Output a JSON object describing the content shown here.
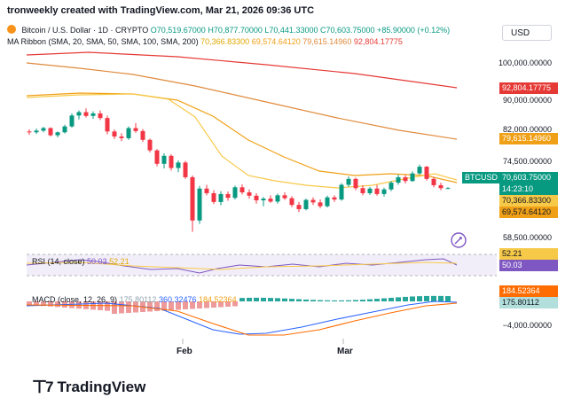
{
  "header": {
    "author": "tronweekly created with TradingView.com, Mar 21, 2026 09:36 UTC"
  },
  "currency_button": "USD",
  "legend": {
    "title": "Bitcoin / U.S. Dollar · 1D · CRYPTO",
    "o": "O70,519.67000",
    "h": "H70,877.70000",
    "l": "L70,441.33000",
    "c": "C70,603.75000",
    "change": "+85.90000 (+0.12%)",
    "ma_label": "MA Ribbon (SMA, 20, SMA, 50, SMA, 100, SMA, 200)",
    "ma20": "70,366.83300",
    "ma50": "69,574.64120",
    "ma100": "79,615.14960",
    "ma200": "92,804.17775"
  },
  "price_axis": [
    "100,000.00000",
    "90,000.00000",
    "82,000.00000",
    "74,500.00000",
    "58,500.00000"
  ],
  "badges": {
    "ma200": "92,804.17775",
    "ma100": "79,615.14960",
    "symbol": "BTCUSD",
    "price": "70,603.75000",
    "countdown": "14:23:10",
    "ma20": "70,366.83300",
    "ma50": "69,574.64120"
  },
  "rsi": {
    "label": "RSI (14, close)",
    "value": "50.03",
    "ma_value": "52.21",
    "badge_ma": "52.21",
    "badge_val": "50.03"
  },
  "macd": {
    "label": "MACD (close, 12, 26, 9)",
    "hist": "175.80112",
    "macd": "360.32476",
    "signal": "184.52364",
    "badge_signal": "184.52364",
    "badge_hist": "175.80112",
    "axis_low": "−4,000.00000"
  },
  "x_axis": [
    "Feb",
    "Mar"
  ],
  "brand": "TradingView",
  "colors": {
    "up": "#089981",
    "down": "#f23645",
    "ma20": "#f7c948",
    "ma50": "#f0a017",
    "ma100": "#e08a3c",
    "ma200": "#e53935",
    "rsi": "#7e57c2",
    "macd_line": "#2962ff",
    "signal_line": "#ff6d00"
  },
  "candles": [
    [
      84100,
      84600,
      83300,
      83900
    ],
    [
      83900,
      84800,
      83500,
      84300
    ],
    [
      84300,
      85200,
      83900,
      84900
    ],
    [
      84900,
      85100,
      82900,
      83200
    ],
    [
      83200,
      84100,
      82700,
      83900
    ],
    [
      83900,
      85700,
      83600,
      85300
    ],
    [
      85300,
      88400,
      85000,
      87900
    ],
    [
      87900,
      89100,
      87000,
      88700
    ],
    [
      88700,
      89600,
      87400,
      87800
    ],
    [
      87800,
      88900,
      87100,
      88400
    ],
    [
      88400,
      89100,
      86800,
      87300
    ],
    [
      87300,
      87900,
      83400,
      84100
    ],
    [
      84100,
      84600,
      82300,
      82900
    ],
    [
      82900,
      83700,
      81800,
      82500
    ],
    [
      82500,
      85300,
      82100,
      84900
    ],
    [
      84900,
      86100,
      83800,
      84200
    ],
    [
      84200,
      84700,
      81600,
      82100
    ],
    [
      82100,
      82400,
      79100,
      79600
    ],
    [
      79600,
      79900,
      75800,
      76400
    ],
    [
      76400,
      78900,
      75300,
      78300
    ],
    [
      78300,
      78700,
      74800,
      75400
    ],
    [
      75400,
      77200,
      74400,
      76700
    ],
    [
      76700,
      77100,
      72800,
      73200
    ],
    [
      73200,
      73600,
      60200,
      62900
    ],
    [
      62900,
      71100,
      62100,
      70500
    ],
    [
      70500,
      71400,
      68900,
      69400
    ],
    [
      69400,
      70100,
      66800,
      67300
    ],
    [
      67300,
      69900,
      66500,
      69200
    ],
    [
      69200,
      69800,
      67600,
      68300
    ],
    [
      68300,
      71200,
      67900,
      70800
    ],
    [
      70800,
      71500,
      69100,
      69600
    ],
    [
      69600,
      70300,
      68100,
      68800
    ],
    [
      68800,
      69400,
      66900,
      67700
    ],
    [
      67700,
      68500,
      66300,
      68100
    ],
    [
      68100,
      68900,
      67100,
      67400
    ],
    [
      67400,
      69300,
      66900,
      68900
    ],
    [
      68900,
      69600,
      67800,
      68200
    ],
    [
      68200,
      68700,
      66100,
      66600
    ],
    [
      66600,
      67300,
      64900,
      65600
    ],
    [
      65600,
      68100,
      65300,
      67800
    ],
    [
      67800,
      68400,
      66600,
      67200
    ],
    [
      67200,
      67900,
      65800,
      66300
    ],
    [
      66300,
      68800,
      66000,
      68400
    ],
    [
      68400,
      68900,
      67300,
      67900
    ],
    [
      67900,
      71800,
      67600,
      71400
    ],
    [
      71400,
      73400,
      70900,
      72800
    ],
    [
      72800,
      73100,
      70100,
      70600
    ],
    [
      70600,
      71300,
      68900,
      69400
    ],
    [
      69400,
      70900,
      69000,
      70500
    ],
    [
      70500,
      71400,
      68800,
      69200
    ],
    [
      69200,
      70700,
      68600,
      70300
    ],
    [
      70300,
      72300,
      69900,
      71900
    ],
    [
      71900,
      73800,
      71400,
      73200
    ],
    [
      73200,
      73700,
      71700,
      72300
    ],
    [
      72300,
      74600,
      72100,
      74100
    ],
    [
      74100,
      76200,
      73800,
      75700
    ],
    [
      75700,
      75900,
      72400,
      72800
    ],
    [
      72800,
      73300,
      70800,
      71300
    ],
    [
      71300,
      71900,
      70100,
      70600
    ],
    [
      70519,
      70877,
      70441,
      70603
    ]
  ]
}
